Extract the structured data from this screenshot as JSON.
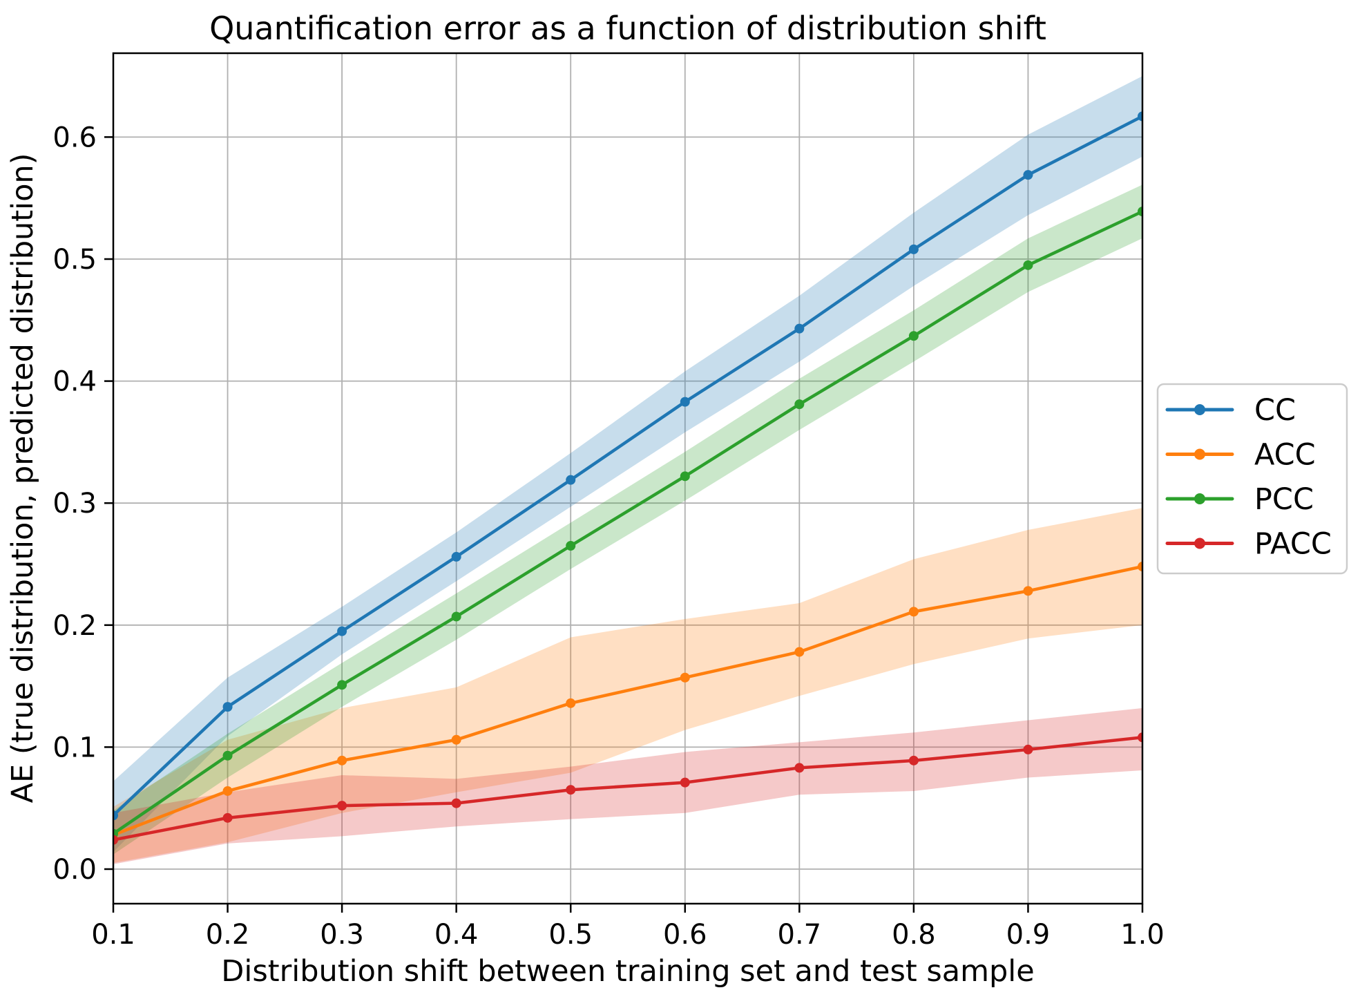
{
  "title": "Quantification error as a function of distribution shift",
  "x_axis": {
    "label": "Distribution shift between training set and test sample",
    "ticks": [
      "0.1",
      "0.2",
      "0.3",
      "0.4",
      "0.5",
      "0.6",
      "0.7",
      "0.8",
      "0.9",
      "1.0"
    ]
  },
  "y_axis": {
    "label": "AE (true distribution, predicted distribution)",
    "ticks": [
      "0.0",
      "0.1",
      "0.2",
      "0.3",
      "0.4",
      "0.5",
      "0.6"
    ]
  },
  "legend": {
    "items": [
      "CC",
      "ACC",
      "PCC",
      "PACC"
    ]
  },
  "colors": {
    "cc": "#1f77b4",
    "acc": "#ff7f0e",
    "pcc": "#2ca02c",
    "pacc": "#d62728",
    "grid": "#b0b0b0",
    "spine": "#000000",
    "legend_border": "#cccccc",
    "background": "#ffffff"
  },
  "chart_data": {
    "type": "line",
    "title": "Quantification error as a function of distribution shift",
    "xlabel": "Distribution shift between training set and test sample",
    "ylabel": "AE (true distribution, predicted distribution)",
    "grid": true,
    "legend_position": "center right, outside plot",
    "xlim": [
      0.1,
      1.0
    ],
    "ylim": [
      -0.028,
      0.669
    ],
    "band_opacity": 0.25,
    "x": [
      0.1,
      0.2,
      0.3,
      0.4,
      0.5,
      0.6,
      0.7,
      0.8,
      0.9,
      1.0
    ],
    "series": [
      {
        "name": "CC",
        "color": "#1f77b4",
        "values": [
          0.044,
          0.133,
          0.195,
          0.256,
          0.319,
          0.383,
          0.443,
          0.508,
          0.569,
          0.617
        ],
        "band_lo": [
          0.014,
          0.109,
          0.176,
          0.236,
          0.297,
          0.358,
          0.416,
          0.478,
          0.536,
          0.584
        ],
        "band_hi": [
          0.072,
          0.157,
          0.215,
          0.276,
          0.341,
          0.408,
          0.47,
          0.538,
          0.602,
          0.65
        ]
      },
      {
        "name": "ACC",
        "color": "#ff7f0e",
        "values": [
          0.028,
          0.064,
          0.089,
          0.106,
          0.136,
          0.157,
          0.178,
          0.211,
          0.228,
          0.248
        ],
        "band_lo": [
          0.005,
          0.022,
          0.046,
          0.063,
          0.079,
          0.114,
          0.142,
          0.168,
          0.189,
          0.2
        ],
        "band_hi": [
          0.051,
          0.106,
          0.132,
          0.149,
          0.19,
          0.205,
          0.218,
          0.254,
          0.278,
          0.296
        ]
      },
      {
        "name": "PCC",
        "color": "#2ca02c",
        "values": [
          0.029,
          0.093,
          0.151,
          0.207,
          0.265,
          0.322,
          0.381,
          0.437,
          0.495,
          0.539
        ],
        "band_lo": [
          0.012,
          0.075,
          0.133,
          0.188,
          0.246,
          0.302,
          0.36,
          0.416,
          0.473,
          0.517
        ],
        "band_hi": [
          0.048,
          0.111,
          0.169,
          0.226,
          0.284,
          0.342,
          0.402,
          0.458,
          0.517,
          0.561
        ]
      },
      {
        "name": "PACC",
        "color": "#d62728",
        "values": [
          0.024,
          0.042,
          0.052,
          0.054,
          0.065,
          0.071,
          0.083,
          0.089,
          0.098,
          0.108
        ],
        "band_lo": [
          0.004,
          0.021,
          0.027,
          0.035,
          0.041,
          0.046,
          0.061,
          0.064,
          0.075,
          0.081
        ],
        "band_hi": [
          0.046,
          0.063,
          0.077,
          0.074,
          0.084,
          0.096,
          0.104,
          0.112,
          0.122,
          0.132
        ]
      }
    ]
  }
}
